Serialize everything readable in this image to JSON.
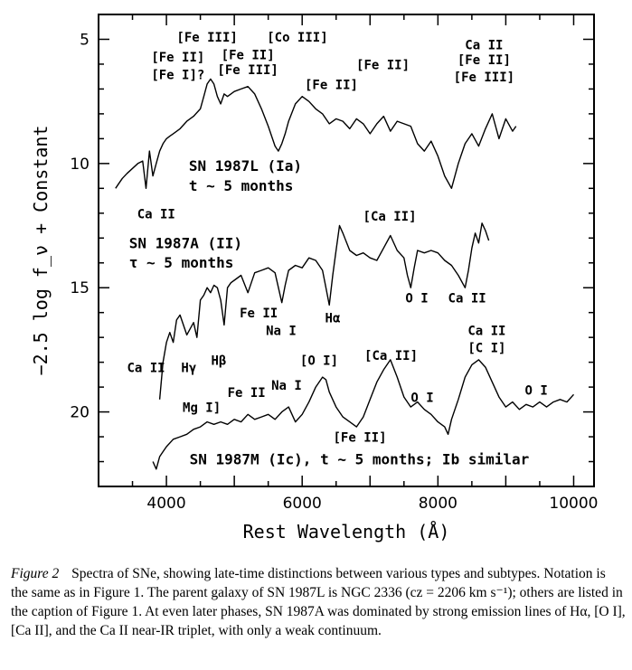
{
  "chart_data": {
    "type": "line",
    "title": "",
    "xlabel": "Rest Wavelength (Å)",
    "ylabel": "−2.5 log f_ν + Constant",
    "xlim": [
      3000,
      10300
    ],
    "ylim": [
      23,
      4
    ],
    "y_inverted": true,
    "x_ticks": [
      4000,
      6000,
      8000,
      10000
    ],
    "y_ticks": [
      5,
      10,
      15,
      20
    ],
    "grid": false,
    "series": [
      {
        "name": "SN 1987L (Ia)",
        "x": [
          3250,
          3300,
          3350,
          3420,
          3500,
          3580,
          3650,
          3700,
          3750,
          3800,
          3850,
          3900,
          3950,
          4000,
          4050,
          4100,
          4200,
          4300,
          4400,
          4500,
          4550,
          4600,
          4650,
          4700,
          4750,
          4800,
          4850,
          4900,
          4950,
          5000,
          5100,
          5200,
          5300,
          5400,
          5500,
          5600,
          5650,
          5700,
          5750,
          5800,
          5900,
          6000,
          6100,
          6200,
          6300,
          6400,
          6500,
          6600,
          6700,
          6800,
          6900,
          7000,
          7100,
          7200,
          7300,
          7400,
          7500,
          7600,
          7700,
          7800,
          7900,
          8000,
          8100,
          8200,
          8300,
          8400,
          8500,
          8600,
          8700,
          8800,
          8900,
          9000,
          9100,
          9150
        ],
        "y": [
          11.0,
          10.8,
          10.6,
          10.4,
          10.2,
          10.0,
          9.9,
          11.0,
          9.5,
          10.5,
          10.0,
          9.5,
          9.2,
          9.0,
          8.9,
          8.8,
          8.6,
          8.3,
          8.1,
          7.8,
          7.3,
          6.8,
          6.6,
          6.8,
          7.3,
          7.6,
          7.2,
          7.3,
          7.2,
          7.1,
          7.0,
          6.9,
          7.2,
          7.8,
          8.5,
          9.3,
          9.5,
          9.2,
          8.8,
          8.3,
          7.6,
          7.3,
          7.5,
          7.8,
          8.0,
          8.4,
          8.2,
          8.3,
          8.6,
          8.2,
          8.4,
          8.8,
          8.4,
          8.1,
          8.7,
          8.3,
          8.4,
          8.5,
          9.2,
          9.5,
          9.1,
          9.7,
          10.5,
          11.0,
          10.0,
          9.2,
          8.8,
          9.3,
          8.6,
          8.0,
          9.0,
          8.2,
          8.7,
          8.5
        ]
      },
      {
        "name": "SN 1987A (II)",
        "x": [
          3900,
          3950,
          4000,
          4050,
          4100,
          4150,
          4200,
          4300,
          4400,
          4450,
          4500,
          4550,
          4600,
          4650,
          4700,
          4750,
          4800,
          4850,
          4900,
          4950,
          5000,
          5100,
          5200,
          5300,
          5400,
          5500,
          5600,
          5700,
          5750,
          5800,
          5900,
          6000,
          6100,
          6200,
          6300,
          6350,
          6400,
          6450,
          6500,
          6550,
          6600,
          6700,
          6800,
          6900,
          7000,
          7100,
          7200,
          7300,
          7400,
          7500,
          7550,
          7600,
          7650,
          7700,
          7800,
          7900,
          8000,
          8100,
          8200,
          8300,
          8400,
          8450,
          8500,
          8550,
          8600,
          8650,
          8700,
          8750
        ],
        "y": [
          19.5,
          18.0,
          17.2,
          16.8,
          17.2,
          16.3,
          16.1,
          16.9,
          16.4,
          17.0,
          15.5,
          15.3,
          15.0,
          15.2,
          14.9,
          15.0,
          15.5,
          16.5,
          15.0,
          14.8,
          14.7,
          14.5,
          15.2,
          14.4,
          14.3,
          14.2,
          14.4,
          15.6,
          14.9,
          14.3,
          14.1,
          14.2,
          13.8,
          13.9,
          14.3,
          15.0,
          15.7,
          14.5,
          13.5,
          12.5,
          12.8,
          13.5,
          13.7,
          13.6,
          13.8,
          13.9,
          13.4,
          12.9,
          13.5,
          13.8,
          14.5,
          15.0,
          14.2,
          13.5,
          13.6,
          13.5,
          13.6,
          13.9,
          14.1,
          14.5,
          15.0,
          14.3,
          13.4,
          12.8,
          13.2,
          12.4,
          12.7,
          13.1
        ]
      },
      {
        "name": "SN 1987M (Ic)",
        "x": [
          3800,
          3850,
          3900,
          3950,
          4000,
          4100,
          4200,
          4300,
          4400,
          4500,
          4600,
          4700,
          4800,
          4900,
          5000,
          5100,
          5200,
          5300,
          5400,
          5500,
          5600,
          5700,
          5800,
          5900,
          6000,
          6100,
          6200,
          6300,
          6350,
          6400,
          6500,
          6600,
          6700,
          6800,
          6900,
          7000,
          7100,
          7200,
          7300,
          7400,
          7500,
          7600,
          7700,
          7800,
          7900,
          8000,
          8100,
          8150,
          8200,
          8300,
          8400,
          8500,
          8600,
          8700,
          8800,
          8900,
          9000,
          9100,
          9200,
          9300,
          9400,
          9500,
          9600,
          9700,
          9800,
          9900,
          10000
        ],
        "y": [
          22.0,
          22.3,
          21.8,
          21.6,
          21.4,
          21.1,
          21.0,
          20.9,
          20.7,
          20.6,
          20.4,
          20.5,
          20.4,
          20.5,
          20.3,
          20.4,
          20.1,
          20.3,
          20.2,
          20.1,
          20.3,
          20.0,
          19.8,
          20.4,
          20.1,
          19.6,
          19.0,
          18.6,
          18.7,
          19.2,
          19.8,
          20.2,
          20.4,
          20.6,
          20.2,
          19.5,
          18.8,
          18.3,
          17.9,
          18.6,
          19.4,
          19.8,
          19.6,
          19.9,
          20.1,
          20.4,
          20.6,
          20.9,
          20.3,
          19.5,
          18.6,
          18.1,
          17.9,
          18.2,
          18.8,
          19.4,
          19.8,
          19.6,
          19.9,
          19.7,
          19.8,
          19.6,
          19.8,
          19.6,
          19.5,
          19.6,
          19.3
        ]
      }
    ],
    "annotations": [
      {
        "text": "[Fe III]",
        "x": 4600,
        "y": 5.1
      },
      {
        "text": "[Fe II]",
        "x": 4170,
        "y": 5.9
      },
      {
        "text": "[Fe I]?",
        "x": 4170,
        "y": 6.6
      },
      {
        "text": "[Fe II]",
        "x": 5200,
        "y": 5.8
      },
      {
        "text": "[Fe III]",
        "x": 5200,
        "y": 6.4
      },
      {
        "text": "[Co III]",
        "x": 5930,
        "y": 5.1
      },
      {
        "text": "[Fe II]",
        "x": 6430,
        "y": 7.0
      },
      {
        "text": "[Fe II]",
        "x": 7190,
        "y": 6.2
      },
      {
        "text": "Ca II",
        "x": 8680,
        "y": 5.4
      },
      {
        "text": "[Fe II]",
        "x": 8680,
        "y": 6.0
      },
      {
        "text": "[Fe III]",
        "x": 8680,
        "y": 6.7
      },
      {
        "text": "Ca II",
        "x": 3850,
        "y": 12.2
      },
      {
        "text": "[Ca II]",
        "x": 7290,
        "y": 12.3
      },
      {
        "text": "O I",
        "x": 7690,
        "y": 15.6
      },
      {
        "text": "Ca II",
        "x": 8430,
        "y": 15.6
      },
      {
        "text": "Hα",
        "x": 6450,
        "y": 16.4
      },
      {
        "text": "Fe II",
        "x": 5360,
        "y": 16.2
      },
      {
        "text": "Na I",
        "x": 5690,
        "y": 16.9
      },
      {
        "text": "Ca II",
        "x": 3700,
        "y": 18.4
      },
      {
        "text": "Hγ",
        "x": 4330,
        "y": 18.4
      },
      {
        "text": "Hβ",
        "x": 4770,
        "y": 18.1
      },
      {
        "text": "[O I]",
        "x": 6250,
        "y": 18.1
      },
      {
        "text": "Na I",
        "x": 5770,
        "y": 19.1
      },
      {
        "text": "Fe II",
        "x": 5180,
        "y": 19.4
      },
      {
        "text": "Mg I]",
        "x": 4520,
        "y": 20.0
      },
      {
        "text": "[Ca II]",
        "x": 7310,
        "y": 17.9
      },
      {
        "text": "O I",
        "x": 7770,
        "y": 19.6
      },
      {
        "text": "Ca II",
        "x": 8720,
        "y": 16.9
      },
      {
        "text": "[C I]",
        "x": 8720,
        "y": 17.6
      },
      {
        "text": "O I",
        "x": 9450,
        "y": 19.3
      },
      {
        "text": "[Fe II]",
        "x": 6850,
        "y": 21.2
      }
    ],
    "spectrum_labels": [
      {
        "line1": "SN 1987L (Ia)",
        "line2": "t ~ 5 months",
        "x": 4330,
        "y1": 10.3,
        "y2": 11.1
      },
      {
        "line1": "SN 1987A (II)",
        "line2": "τ ~ 5 months",
        "x": 3450,
        "y1": 13.4,
        "y2": 14.2
      },
      {
        "line1": "SN 1987M (Ic), t ~ 5 months; Ib similar",
        "line2": "",
        "x": 4340,
        "y1": 22.1,
        "y2": 0
      }
    ]
  },
  "caption": {
    "figure_label": "Figure 2",
    "text": "Spectra of SNe, showing late-time distinctions between various types and subtypes. Notation is the same as in Figure 1. The parent galaxy of SN 1987L is NGC 2336 (cz = 2206 km s⁻¹); others are listed in the caption of Figure 1. At even later phases, SN 1987A was dominated by strong emission lines of Hα, [O I], [Ca II], and the Ca II near-IR triplet, with only a weak continuum."
  }
}
